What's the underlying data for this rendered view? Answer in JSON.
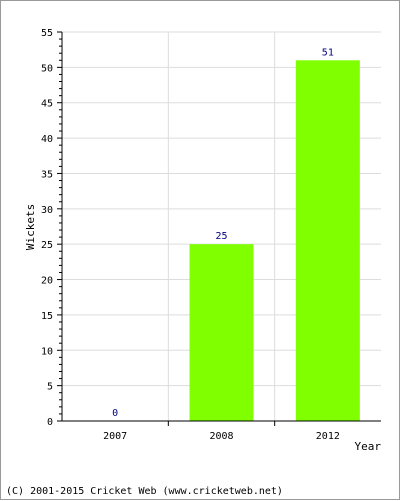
{
  "chart_data": {
    "type": "bar",
    "categories": [
      "2007",
      "2008",
      "2012"
    ],
    "values": [
      0,
      25,
      51
    ],
    "data_labels": [
      "0",
      "25",
      "51"
    ],
    "xlabel": "Year",
    "ylabel": "Wickets",
    "ylim": [
      0,
      55
    ],
    "yticks": [
      "0",
      "5",
      "10",
      "15",
      "20",
      "25",
      "30",
      "35",
      "40",
      "45",
      "50",
      "55"
    ],
    "grid": true,
    "bar_color": "#80ff00",
    "label_color": "#000080"
  },
  "footer": {
    "copyright": "(C) 2001-2015 Cricket Web (www.cricketweb.net)"
  }
}
